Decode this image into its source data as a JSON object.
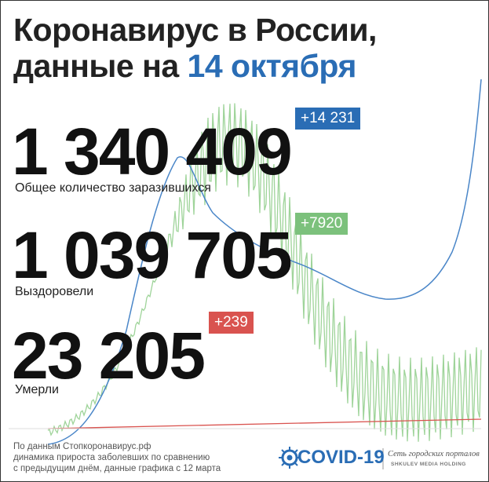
{
  "header": {
    "title_line1": "Коронавирус в России,",
    "title_line2_prefix": "данные на",
    "title_date": "14 октября"
  },
  "stats": [
    {
      "value": "1 340 409",
      "change": "+14 231",
      "label": "Общее количество заразившихся"
    },
    {
      "value": "1 039 705",
      "change": "+7920",
      "label": "Выздоровели"
    },
    {
      "value": "23 205",
      "change": "+239",
      "label": "Умерли"
    }
  ],
  "footer": {
    "lines": [
      "По данным Стопкоронавирус.рф",
      "динамика прироста заболевших по сравнению",
      "с предыдущим днём, данные графика с 12 марта"
    ]
  },
  "logo": {
    "name": "COVID-19",
    "network": "Сеть городских порталов",
    "holding": "SHKULEV MEDIA HOLDING"
  }
}
